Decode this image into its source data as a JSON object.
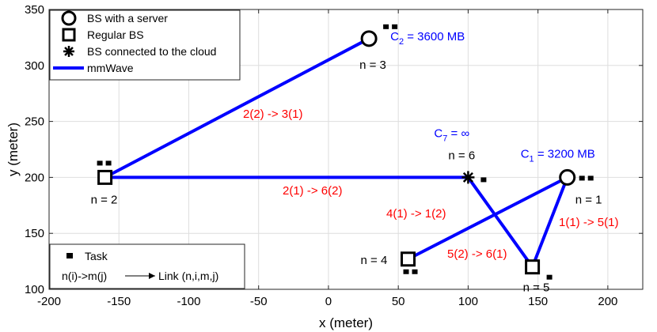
{
  "chart_data": {
    "type": "scatter",
    "title": "",
    "xlabel": "x (meter)",
    "ylabel": "y (meter)",
    "xlim": [
      -200,
      225
    ],
    "ylim": [
      100,
      350
    ],
    "xticks": [
      -200,
      -150,
      -100,
      -50,
      0,
      50,
      100,
      150,
      200
    ],
    "yticks": [
      100,
      150,
      200,
      250,
      300,
      350
    ],
    "grid": true,
    "legend_position": "top-left",
    "colors": {
      "link": "#0000ff",
      "link_label": "#ff0000",
      "capacity_label": "#0000ff",
      "marker": "#000000"
    },
    "nodes": [
      {
        "id": 1,
        "label": "n = 1",
        "x": 171,
        "y": 200,
        "kind": "server",
        "capacity": "C",
        "capacity_sub": "1",
        "capacity_value": " = 3200 MB",
        "tasks": 2
      },
      {
        "id": 2,
        "label": "n = 2",
        "x": -160,
        "y": 200,
        "kind": "regular",
        "tasks": 2
      },
      {
        "id": 3,
        "label": "n = 3",
        "x": 29,
        "y": 324,
        "kind": "server",
        "capacity": "C",
        "capacity_sub": "2",
        "capacity_value": " = 3600 MB",
        "tasks": 2
      },
      {
        "id": 4,
        "label": "n = 4",
        "x": 57,
        "y": 127,
        "kind": "regular",
        "tasks": 2
      },
      {
        "id": 5,
        "label": "n = 5",
        "x": 146,
        "y": 120,
        "kind": "regular",
        "tasks": 1
      },
      {
        "id": 6,
        "label": "n = 6",
        "x": 100,
        "y": 200,
        "kind": "cloud",
        "capacity": "C",
        "capacity_sub": "7",
        "capacity_value": " = ∞",
        "tasks": 1
      }
    ],
    "links": [
      {
        "from": 2,
        "to": 3,
        "label": "2(2) -> 3(1)"
      },
      {
        "from": 2,
        "to": 6,
        "label": "2(1) -> 6(2)"
      },
      {
        "from": 4,
        "to": 1,
        "label": "4(1) -> 1(2)"
      },
      {
        "from": 6,
        "to": 5,
        "label": "5(2) -> 6(1)"
      },
      {
        "from": 1,
        "to": 5,
        "label": "1(1) -> 5(1)"
      }
    ],
    "legend": [
      {
        "marker": "circle",
        "label": "BS with a server"
      },
      {
        "marker": "square",
        "label": "Regular BS"
      },
      {
        "marker": "asterisk",
        "label": "BS connected to the cloud"
      },
      {
        "marker": "line",
        "label": "mmWave"
      }
    ],
    "legend2": [
      {
        "marker": "task",
        "label": "Task"
      },
      {
        "marker": "arrow",
        "label_left": "n(i)->m(j)",
        "label_right": "Link (n,i,m,j)"
      }
    ]
  }
}
